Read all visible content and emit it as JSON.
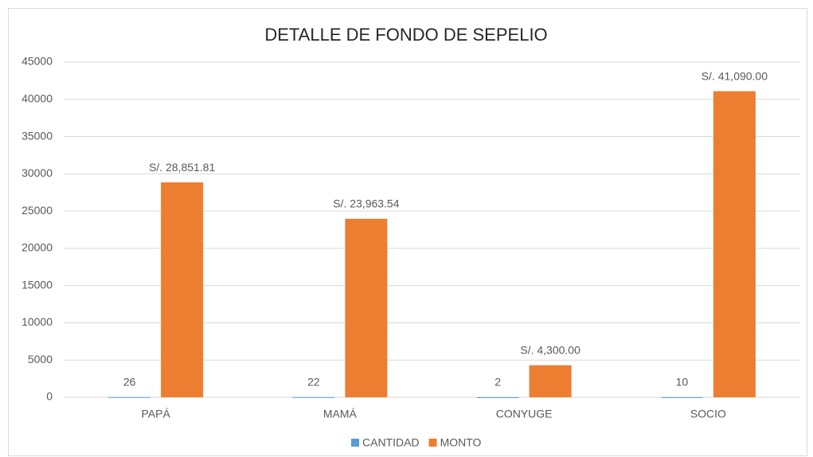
{
  "chart_data": {
    "type": "bar",
    "title": "DETALLE DE FONDO DE SEPELIO",
    "categories": [
      "PAPÁ",
      "MAMÁ",
      "CONYUGE",
      "SOCIO"
    ],
    "series": [
      {
        "name": "CANTIDAD",
        "color": "#5b9bd5",
        "values": [
          26,
          22,
          2,
          10
        ]
      },
      {
        "name": "MONTO",
        "color": "#ed7d31",
        "values": [
          28851.81,
          23963.54,
          4300,
          41090
        ],
        "value_labels": [
          "S/. 28,851.81",
          "S/. 23,963.54",
          "S/. 4,300.00",
          "S/. 41,090.00"
        ]
      }
    ],
    "ylim": [
      0,
      45000
    ],
    "yticks": [
      0,
      5000,
      10000,
      15000,
      20000,
      25000,
      30000,
      35000,
      40000,
      45000
    ],
    "grid": true,
    "legend": "bottom"
  }
}
